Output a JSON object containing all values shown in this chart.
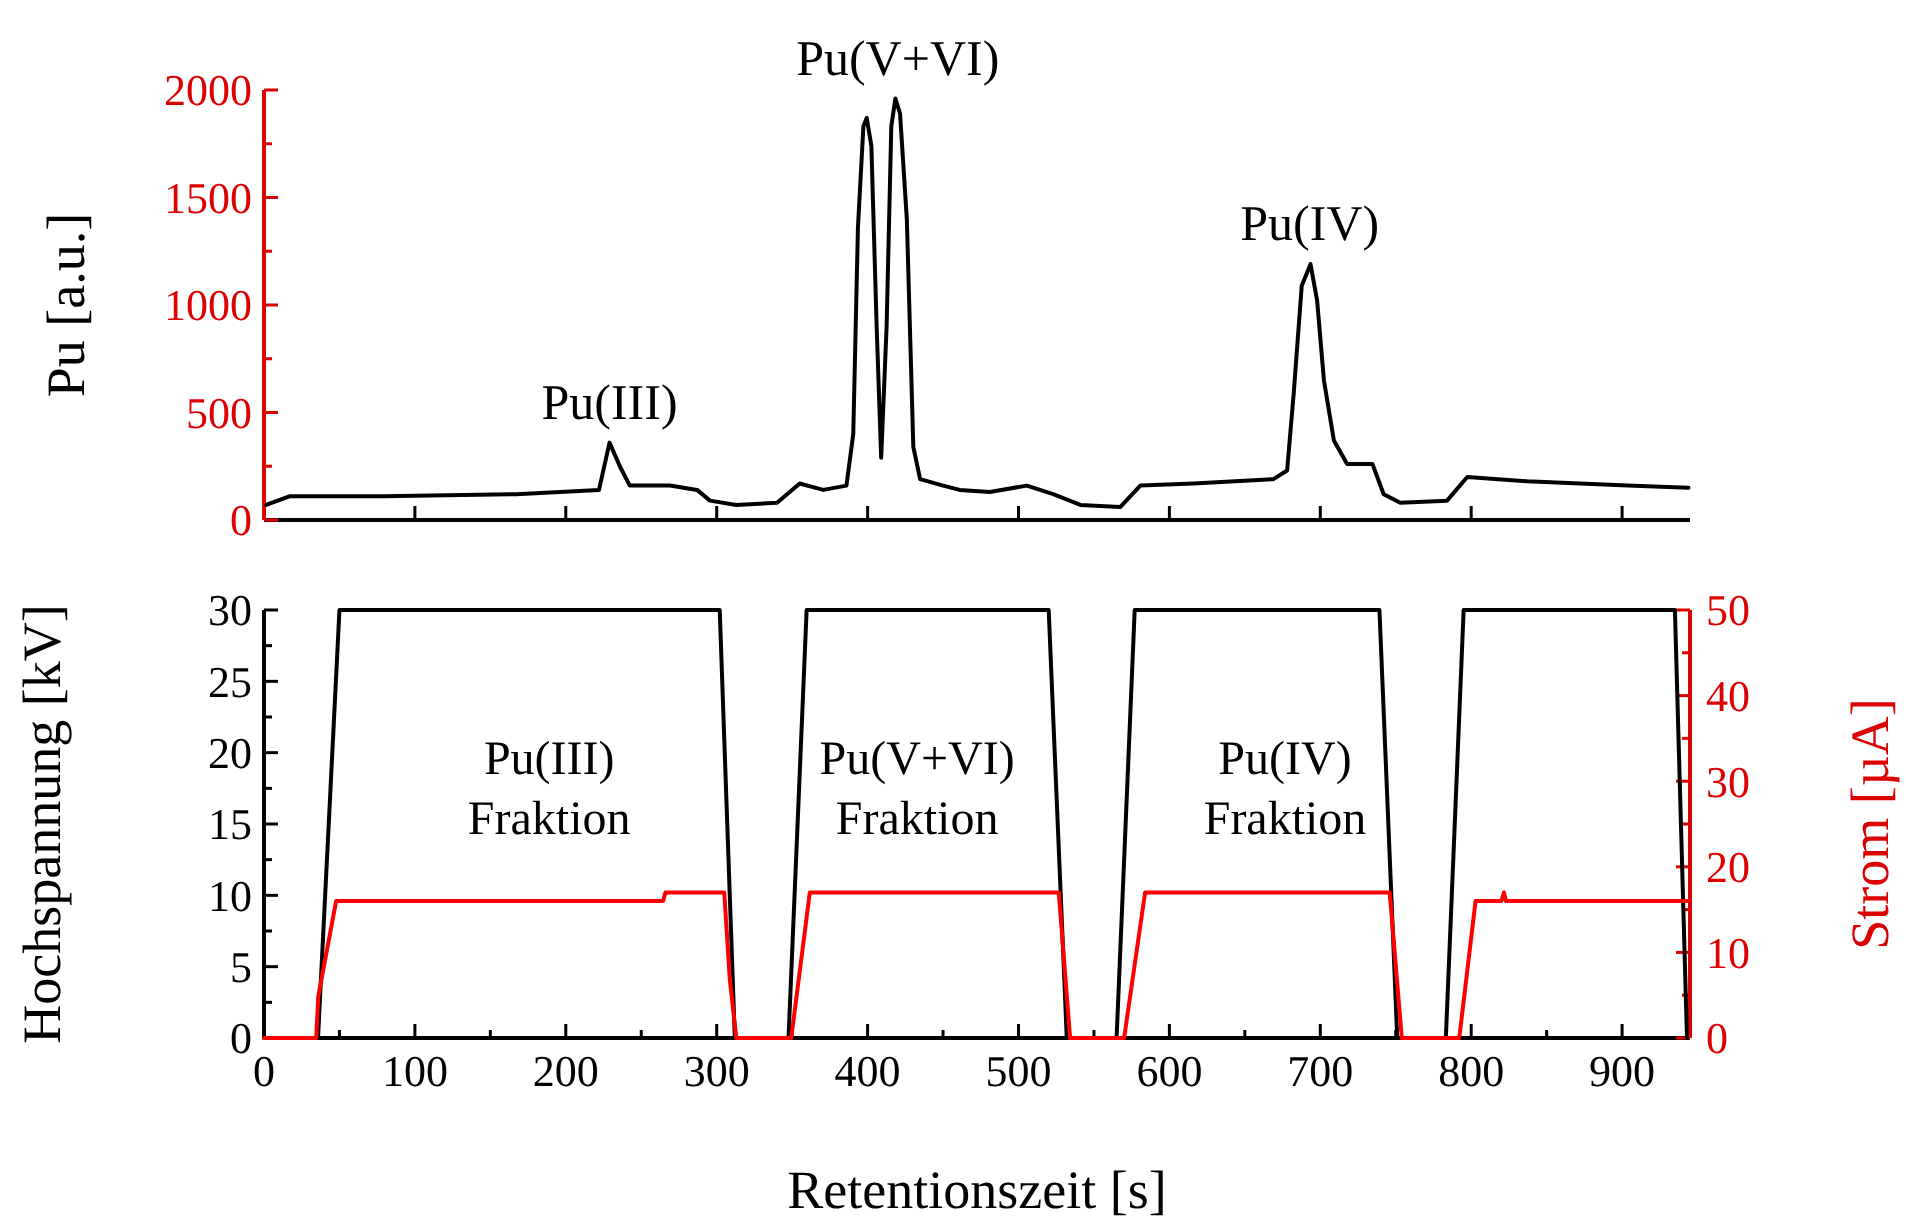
{
  "chart_data": [
    {
      "type": "line",
      "ylabel": "Pu [a.u.]",
      "xlim": [
        0,
        945
      ],
      "xticks": [
        0,
        100,
        200,
        300,
        400,
        500,
        600,
        700,
        800,
        900
      ],
      "ylim": [
        0,
        2000
      ],
      "yticks": [
        0,
        {
          "value": 250,
          "label": null
        },
        500,
        {
          "value": 750,
          "label": null
        },
        1000,
        {
          "value": 1250,
          "label": null
        },
        1500,
        {
          "value": 1750,
          "label": null
        },
        2000
      ],
      "tick_labels": "y",
      "annotations": [
        {
          "text": "Pu(III)",
          "x": 229,
          "y": 360
        },
        {
          "text": "Pu(V+VI)",
          "x": 420,
          "y": 1960
        },
        {
          "text": "Pu(IV)",
          "x": 693,
          "y": 1190
        }
      ],
      "series": [
        {
          "color": "#000000",
          "x": [
            1.4,
            16.8,
            78.8,
            167,
            222,
            229,
            235.8,
            242.4,
            269,
            287,
            295.5,
            313,
            340,
            355,
            370.6,
            386,
            390.5,
            393.6,
            397.2,
            399.4,
            402.5,
            406,
            409,
            412.6,
            415.7,
            418.4,
            421.5,
            426,
            430.3,
            434.8,
            450,
            461,
            481,
            505.5,
            523,
            541,
            567.4,
            580.7,
            616,
            669,
            678,
            682.4,
            687.7,
            693.5,
            697.9,
            702.4,
            709,
            717.8,
            734.6,
            742,
            753,
            784,
            797.4,
            837,
            903.4,
            944
          ],
          "values": [
            70,
            110,
            110,
            120,
            140,
            360,
            250,
            160,
            160,
            140,
            90,
            70,
            80,
            170,
            140,
            160,
            400,
            1360,
            1830,
            1870,
            1740,
            900,
            290,
            900,
            1830,
            1960,
            1890,
            1400,
            340,
            190,
            160,
            140,
            130,
            160,
            120,
            70,
            60,
            160,
            170,
            190,
            230,
            590,
            1090,
            1190,
            1020,
            650,
            370,
            260,
            260,
            120,
            80,
            90,
            200,
            180,
            160,
            150
          ]
        }
      ]
    },
    {
      "type": "line",
      "xlabel": "Retentionszeit [s]",
      "ylabel": "Hochspannung [kV]",
      "y2label": "Strom [µA]",
      "xlim": [
        0,
        945
      ],
      "xticks": [
        0,
        {
          "value": 50,
          "label": null
        },
        100,
        {
          "value": 150,
          "label": null
        },
        200,
        {
          "value": 250,
          "label": null
        },
        300,
        {
          "value": 350,
          "label": null
        },
        400,
        {
          "value": 450,
          "label": null
        },
        500,
        {
          "value": 550,
          "label": null
        },
        600,
        {
          "value": 650,
          "label": null
        },
        700,
        {
          "value": 750,
          "label": null
        },
        800,
        {
          "value": 850,
          "label": null
        },
        900
      ],
      "ylim": [
        0,
        30
      ],
      "yticks": [
        0,
        {
          "value": 2.5,
          "label": null
        },
        5,
        {
          "value": 7.5,
          "label": null
        },
        10,
        {
          "value": 12.5,
          "label": null
        },
        15,
        {
          "value": 17.5,
          "label": null
        },
        20,
        {
          "value": 22.5,
          "label": null
        },
        25,
        {
          "value": 27.5,
          "label": null
        },
        30
      ],
      "y2lim": [
        0,
        50
      ],
      "y2ticks": [
        0,
        {
          "value": 5,
          "label": null
        },
        10,
        {
          "value": 15,
          "label": null
        },
        20,
        {
          "value": 25,
          "label": null
        },
        30,
        {
          "value": 35,
          "label": null
        },
        40,
        {
          "value": 45,
          "label": null
        },
        50
      ],
      "annotations": [
        "Pu(III)\nFraktion",
        "Pu(V+VI)\nFraktion",
        "Pu(IV)\nFraktion"
      ],
      "series": [
        {
          "color": "#000000",
          "x": [
            0,
            35.8,
            50,
            302,
            312,
            347.6,
            359.6,
            520,
            532,
            565,
            577,
            739.2,
            751,
            783.2,
            795,
            935,
            943
          ],
          "values": [
            0,
            0,
            30,
            30,
            0,
            0,
            30,
            30,
            0,
            0,
            30,
            30,
            0,
            0,
            30,
            30,
            0
          ]
        },
        {
          "color": "#ff0000",
          "axis": "y2",
          "x": [
            0,
            34.6,
            36,
            47.8,
            264.5,
            266,
            305,
            308.7,
            313,
            349.4,
            361.7,
            526.7,
            534.2,
            570,
            583.9,
            746,
            754,
            792.1,
            802.9,
            820,
            821.7,
            823,
            944
          ],
          "values": [
            0,
            0,
            4.9,
            16,
            16,
            17,
            17,
            6.8,
            0,
            0,
            17,
            17,
            0,
            0,
            17,
            17,
            0,
            0,
            16,
            16,
            17,
            16,
            16
          ]
        }
      ]
    }
  ]
}
